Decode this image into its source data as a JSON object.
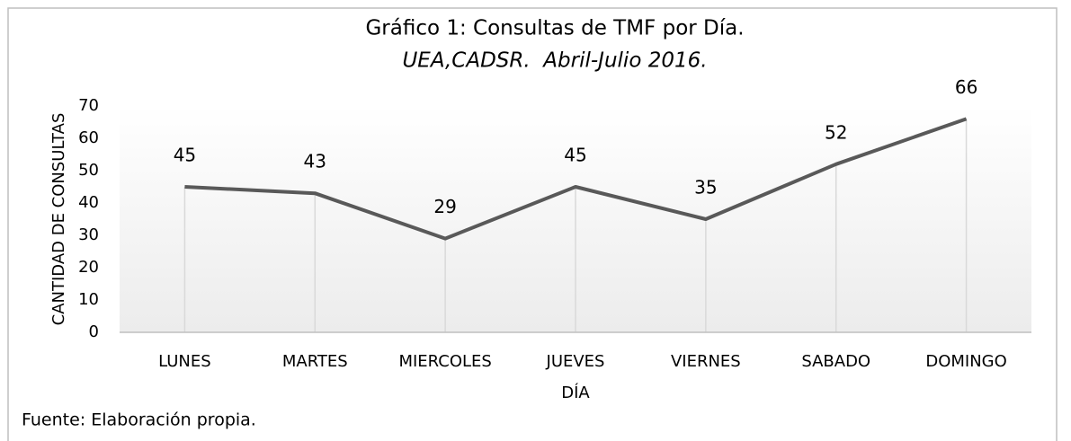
{
  "chart_data": {
    "type": "line",
    "title": "Gráfico 1: Consultas de TMF por Día.",
    "subtitle": "UEA,CADSR.  Abril-Julio 2016.",
    "x_label": "DÍA",
    "y_label": "CANTIDAD DE CONSULTAS",
    "source": "Fuente: Elaboración propia.",
    "categories": [
      "LUNES",
      "MARTES",
      "MIERCOLES",
      "JUEVES",
      "VIERNES",
      "SABADO",
      "DOMINGO"
    ],
    "values": [
      45,
      43,
      29,
      45,
      35,
      52,
      66
    ],
    "color": "#595959",
    "drop_lines": true,
    "ylim": [
      0,
      70
    ],
    "yticks": [
      0,
      10,
      20,
      30,
      40,
      50,
      60,
      70
    ],
    "grid": false
  }
}
